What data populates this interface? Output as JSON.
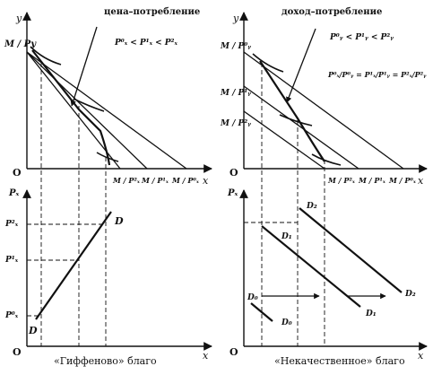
{
  "left": {
    "top_panel": {
      "y_axis": "y",
      "x_axis": "x",
      "origin": "O",
      "curve_label": "цена–потребление",
      "condition": "P⁰ₓ < P¹ₓ < P²ₓ",
      "y_intercept": "M / Py",
      "x_intercepts": [
        "M / P²ₓ",
        "M / P¹ₓ",
        "M / P⁰ₓ"
      ]
    },
    "bottom_panel": {
      "y_axis": "Pₓ",
      "x_axis": "x",
      "origin": "O",
      "price_ticks": [
        "P²ₓ",
        "P¹ₓ",
        "P⁰ₓ"
      ],
      "demand_top": "D",
      "demand_bottom": "D"
    },
    "caption": "«Гиффеново» благо"
  },
  "right": {
    "top_panel": {
      "y_axis": "y",
      "x_axis": "x",
      "origin": "O",
      "curve_label": "доход–потребление",
      "condition": "P⁰ᵧ < P¹ᵧ < P²ᵧ",
      "ratio_condition": "P⁰ₓ/P⁰ᵧ = P¹ₓ/P¹ᵧ = P²ₓ/P²ᵧ",
      "y_intercepts": [
        "M / P⁰ᵧ",
        "M / P¹ᵧ",
        "M / P²ᵧ"
      ],
      "x_intercepts": [
        "M / P²ₓ",
        "M / P¹ₓ",
        "M / P⁰ₓ"
      ]
    },
    "bottom_panel": {
      "y_axis": "Pₓ",
      "x_axis": "x",
      "origin": "O",
      "curve_labels": [
        "D₂",
        "D₁",
        "D₀",
        "D₀",
        "D₁",
        "D₂"
      ]
    },
    "caption": "«Некачественное» благо"
  }
}
